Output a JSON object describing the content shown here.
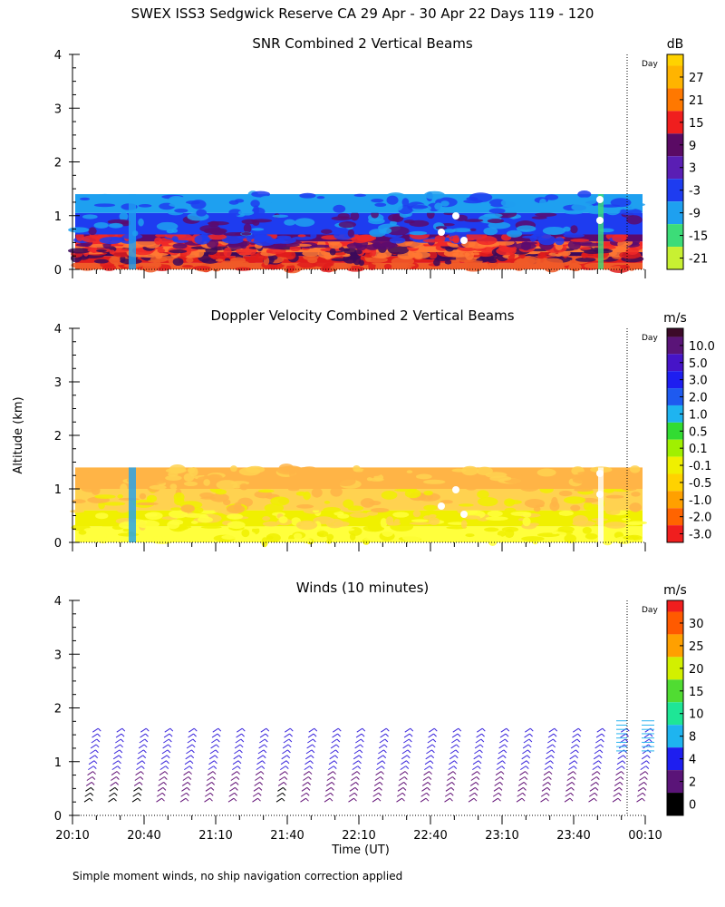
{
  "figure": {
    "title": "SWEX ISS3 Sedgwick Reserve CA  29 Apr - 30 Apr 22 Days 119 - 120",
    "ylabel": "Altitude (km)",
    "xlabel": "Time (UT)",
    "footnote": "Simple moment winds, no ship navigation correction applied",
    "day_marker_label": "Day"
  },
  "chart_data": [
    {
      "type": "heatmap",
      "title": "SNR Combined 2 Vertical Beams",
      "ylim": [
        0,
        4
      ],
      "yticks": [
        "0",
        "1",
        "2",
        "3",
        "4"
      ],
      "colorbar_unit": "dB",
      "colorbar_labels": [
        "27",
        "21",
        "15",
        "9",
        "3",
        "-3",
        "-9",
        "-15",
        "-21"
      ],
      "colorbar_colors": [
        "#ffb400",
        "#ff7800",
        "#f01e1e",
        "#5a0a64",
        "#5a1eb4",
        "#1e3cf0",
        "#1ea0f0",
        "#3cdc78",
        "#c8f032"
      ],
      "colorbar_top_color": "#ffd200",
      "layers": [
        {
          "from": 0.0,
          "to": 0.12,
          "color": "#f05a28"
        },
        {
          "from": 0.12,
          "to": 0.25,
          "color": "#e01c1c"
        },
        {
          "from": 0.25,
          "to": 0.32,
          "color": "#3c0a5a"
        },
        {
          "from": 0.32,
          "to": 0.43,
          "color": "#ff7832"
        },
        {
          "from": 0.43,
          "to": 0.52,
          "color": "#f02828"
        },
        {
          "from": 0.52,
          "to": 0.65,
          "color": "#5a0a6e"
        },
        {
          "from": 0.65,
          "to": 1.05,
          "color": "#1e3cf0"
        },
        {
          "from": 1.05,
          "to": 1.4,
          "color": "#1ea0f0"
        }
      ]
    },
    {
      "type": "heatmap",
      "title": "Doppler Velocity Combined 2 Vertical Beams",
      "ylim": [
        0,
        4
      ],
      "yticks": [
        "0",
        "1",
        "2",
        "3",
        "4"
      ],
      "colorbar_unit": "m/s",
      "colorbar_labels": [
        "10.0",
        "5.0",
        "3.0",
        "2.0",
        "1.0",
        "0.5",
        "0.1",
        "-0.1",
        "-0.5",
        "-1.0",
        "-2.0",
        "-3.0"
      ],
      "colorbar_colors": [
        "#5a1478",
        "#4614c8",
        "#1e1ef0",
        "#1e5af0",
        "#1eb4f0",
        "#32dc32",
        "#a0f000",
        "#f0f000",
        "#ffd200",
        "#ffa000",
        "#ff6400",
        "#f01e1e"
      ],
      "colorbar_top_color": "#3c0a28",
      "layers": [
        {
          "from": 0.0,
          "to": 0.3,
          "color": "#ffff3c"
        },
        {
          "from": 0.3,
          "to": 0.6,
          "color": "#f0f000"
        },
        {
          "from": 0.6,
          "to": 1.0,
          "color": "#ffd250"
        },
        {
          "from": 1.0,
          "to": 1.4,
          "color": "#ffb446"
        }
      ]
    },
    {
      "type": "wind_barbs",
      "title": "Winds (10 minutes)",
      "ylim": [
        0,
        4
      ],
      "yticks": [
        "0",
        "1",
        "2",
        "3",
        "4"
      ],
      "colorbar_unit": "m/s",
      "colorbar_labels": [
        "30",
        "25",
        "20",
        "15",
        "10",
        "8",
        "4",
        "2",
        "0"
      ],
      "colorbar_colors": [
        "#ff5a00",
        "#ffa000",
        "#d2f000",
        "#50dc32",
        "#1ee696",
        "#1eb4f0",
        "#1e1ef0",
        "#5a1478",
        "#000000"
      ],
      "colorbar_top_color": "#f01e1e",
      "barb_colors": {
        "main": "#3c28dc",
        "alt": "#641478",
        "low": "#000000",
        "late": "#28b4f0"
      }
    }
  ],
  "x_axis": {
    "tick_labels": [
      "20:10",
      "20:40",
      "21:10",
      "21:40",
      "22:10",
      "22:40",
      "23:10",
      "23:40",
      "00:10"
    ]
  }
}
